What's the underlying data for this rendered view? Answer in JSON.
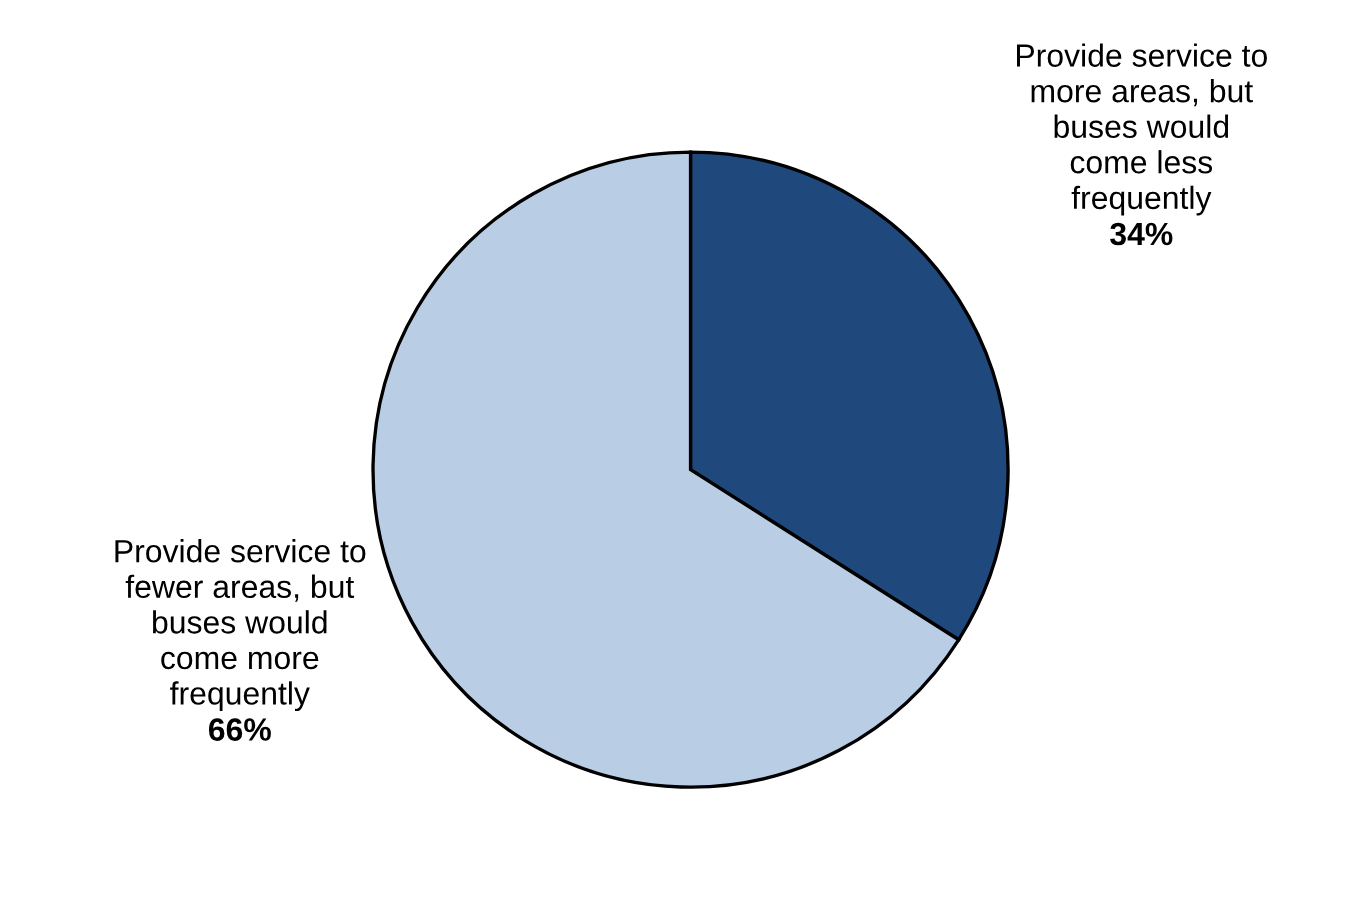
{
  "chart_data": {
    "type": "pie",
    "categories": [
      "Provide service to\nmore areas, but\nbuses would\ncome less\nfrequently",
      "Provide service to\nfewer areas, but\nbuses would\ncome more\nfrequently"
    ],
    "values": [
      34,
      66
    ],
    "colors": [
      "#1f497d",
      "#b9cde5"
    ],
    "value_labels": [
      "34%",
      "66%"
    ]
  }
}
